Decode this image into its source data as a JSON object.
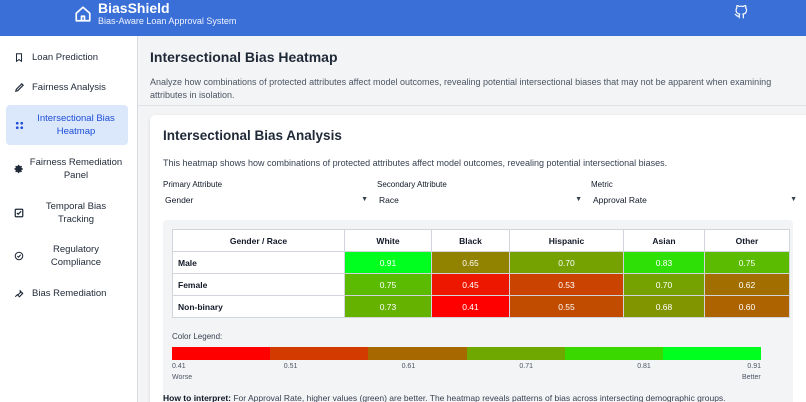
{
  "header": {
    "title": "BiasShield",
    "subtitle": "Bias-Aware Loan Approval System",
    "github_icon": "github-icon",
    "logo_icon": "home-icon"
  },
  "sidebar": {
    "items": [
      {
        "label": "Loan Prediction",
        "icon": "bookmark-icon"
      },
      {
        "label": "Fairness Analysis",
        "icon": "pen-icon"
      },
      {
        "label": "Intersectional Bias Heatmap",
        "icon": "grid-dots-icon",
        "active": true
      },
      {
        "label": "Fairness Remediation Panel",
        "icon": "gear-icon"
      },
      {
        "label": "Temporal Bias Tracking",
        "icon": "chart-check-icon"
      },
      {
        "label": "Regulatory Compliance",
        "icon": "check-circle-icon"
      },
      {
        "label": "Bias Remediation",
        "icon": "wrench-icon"
      }
    ]
  },
  "page": {
    "title": "Intersectional Bias Heatmap",
    "description": "Analyze how combinations of protected attributes affect model outcomes, revealing potential intersectional biases that may not be apparent when examining attributes in isolation."
  },
  "card": {
    "title": "Intersectional Bias Analysis",
    "description": "This heatmap shows how combinations of protected attributes affect model outcomes, revealing potential intersectional biases.",
    "selects": {
      "primary": {
        "label": "Primary Attribute",
        "value": "Gender"
      },
      "secondary": {
        "label": "Secondary Attribute",
        "value": "Race"
      },
      "metric": {
        "label": "Metric",
        "value": "Approval Rate"
      }
    },
    "table": {
      "corner": "Gender / Race",
      "columns": [
        "White",
        "Black",
        "Hispanic",
        "Asian",
        "Other"
      ],
      "rows": [
        {
          "label": "Male",
          "values": [
            "0.91",
            "0.65",
            "0.70",
            "0.83",
            "0.75"
          ]
        },
        {
          "label": "Female",
          "values": [
            "0.75",
            "0.45",
            "0.53",
            "0.70",
            "0.62"
          ]
        },
        {
          "label": "Non-binary",
          "values": [
            "0.73",
            "0.41",
            "0.55",
            "0.68",
            "0.60"
          ]
        }
      ]
    },
    "legend": {
      "label": "Color Legend:",
      "ticks": [
        "0.41",
        "0.51",
        "0.61",
        "0.71",
        "0.81",
        "0.91"
      ],
      "worse": "Worse",
      "better": "Better",
      "colors": [
        "#ff0000",
        "#d23a00",
        "#a86800",
        "#6fa800",
        "#3bd800",
        "#00ff1f"
      ]
    },
    "interpretation": {
      "bold": "How to interpret:",
      "text": " For Approval Rate, higher values (green) are better. The heatmap reveals patterns of bias across intersecting demographic groups."
    }
  },
  "colors": {
    "header_bg": "#3a6fd8",
    "active_nav_bg": "#dbe7fb",
    "active_nav_text": "#1d4ed8"
  }
}
